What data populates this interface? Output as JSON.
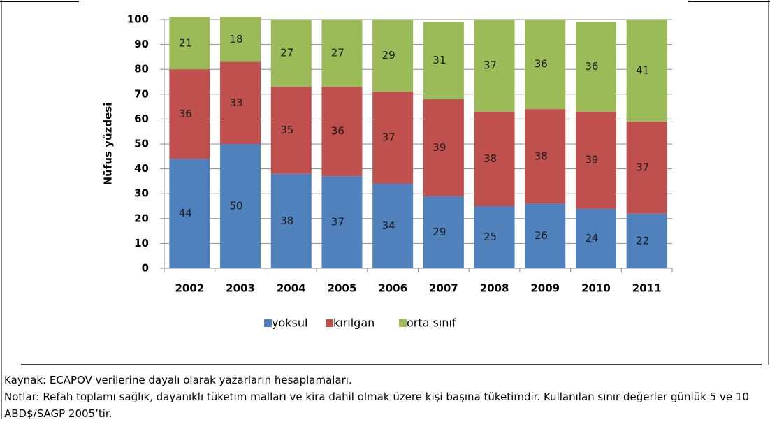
{
  "chart_data": {
    "type": "stacked-bar",
    "ylabel": "Nüfus yüzdesi",
    "categories": [
      "2002",
      "2003",
      "2004",
      "2005",
      "2006",
      "2007",
      "2008",
      "2009",
      "2010",
      "2011"
    ],
    "series": [
      {
        "name": "yoksul",
        "color": "#4f81bd",
        "values": [
          44,
          50,
          38,
          37,
          34,
          29,
          25,
          26,
          24,
          22
        ]
      },
      {
        "name": "kırılgan",
        "color": "#c0504d",
        "values": [
          36,
          33,
          35,
          36,
          37,
          39,
          38,
          38,
          39,
          37
        ]
      },
      {
        "name": "orta sınıf",
        "color": "#9bbb59",
        "values": [
          21,
          18,
          27,
          27,
          29,
          31,
          37,
          36,
          36,
          41
        ]
      }
    ],
    "ylim": [
      0,
      100
    ],
    "yticks": [
      0,
      10,
      20,
      30,
      40,
      50,
      60,
      70,
      80,
      90,
      100
    ],
    "grid": true
  },
  "source": "Kaynak: ECAPOV verilerine dayalı olarak yazarların hesaplamaları.",
  "notes": "Notlar: Refah toplamı sağlık, dayanıklı tüketim malları ve kira dahil olmak üzere kişi başına tüketimdir. Kullanılan sınır değerler günlük 5 ve 10 ABD$/SAGP 2005’tir."
}
